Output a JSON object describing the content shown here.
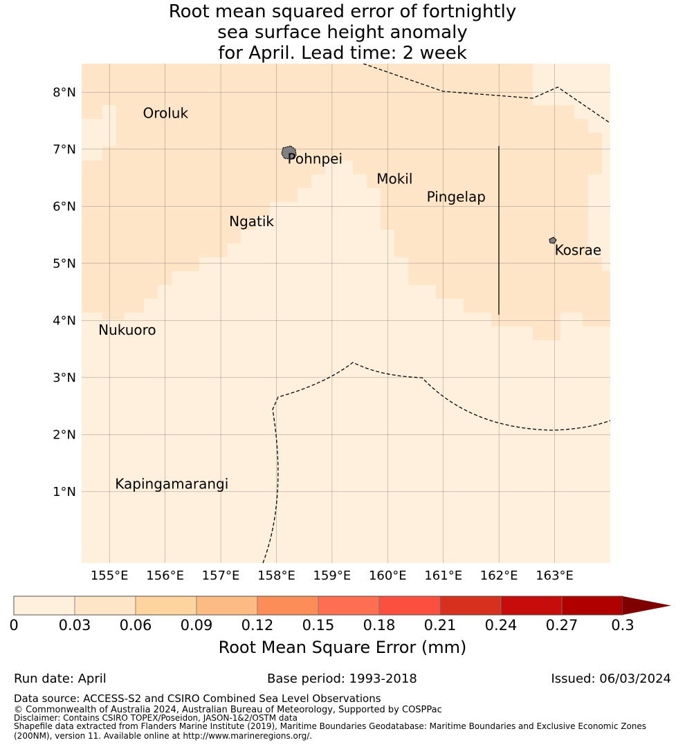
{
  "title": {
    "line1": "Root mean squared error of fortnightly",
    "line2": "sea surface height anomaly",
    "line3": "for April. Lead time: 2 week"
  },
  "map": {
    "lon_range": [
      154.5,
      164.0
    ],
    "lat_range": [
      -0.25,
      8.5
    ],
    "lon_ticks": [
      "155°E",
      "156°E",
      "157°E",
      "158°E",
      "159°E",
      "160°E",
      "161°E",
      "162°E",
      "163°E"
    ],
    "lat_ticks": [
      "1°N",
      "2°N",
      "3°N",
      "4°N",
      "5°N",
      "6°N",
      "7°N",
      "8°N"
    ],
    "gridlines": true,
    "colors": {
      "class1": "#fef0dc",
      "class2": "#fee5c8",
      "island": "#808080",
      "boundary": "#000000"
    },
    "places": [
      {
        "name": "Oroluk",
        "lon": 155.6,
        "lat": 7.55
      },
      {
        "name": "Pohnpei",
        "lon": 158.2,
        "lat": 6.75
      },
      {
        "name": "Mokil",
        "lon": 159.8,
        "lat": 6.4
      },
      {
        "name": "Pingelap",
        "lon": 160.7,
        "lat": 6.08
      },
      {
        "name": "Ngatik",
        "lon": 157.15,
        "lat": 5.65
      },
      {
        "name": "Kosrae",
        "lon": 163.0,
        "lat": 5.15
      },
      {
        "name": "Nukuoro",
        "lon": 154.8,
        "lat": 3.75
      },
      {
        "name": "Kapingamarangi",
        "lon": 155.1,
        "lat": 1.05
      }
    ]
  },
  "colorbar": {
    "bounds": [
      0,
      0.03,
      0.06,
      0.09,
      0.12,
      0.15,
      0.18,
      0.21,
      0.24,
      0.27,
      0.3
    ],
    "tick_labels": [
      "0",
      "0.03",
      "0.06",
      "0.09",
      "0.12",
      "0.15",
      "0.18",
      "0.21",
      "0.24",
      "0.27",
      "0.3"
    ],
    "colors": [
      "#fef0dc",
      "#fee5c8",
      "#fdd49e",
      "#fdbb84",
      "#fc8d59",
      "#fd6f50",
      "#fb4f40",
      "#d8301f",
      "#c70c0c",
      "#b00000"
    ],
    "extend_color": "#7f0000",
    "label": "Root Mean Square Error (mm)"
  },
  "meta": {
    "run_date": "Run date: April",
    "base_period": "Base period: 1993-2018",
    "issued": "Issued: 06/03/2024"
  },
  "footer": {
    "source": "Data source: ACCESS-S2 and CSIRO Combined Sea Level Observations",
    "copyright": "© Commonwealth of Australia 2024, Australian Bureau of Meteorology, Supported by COSPPac",
    "disclaimer": "Disclaimer: Contains CSIRO TOPEX/Poseidon, JASON-1&2/OSTM data",
    "shapefile1": "Shapefile data extracted from Flanders Marine Institute (2019), Maritime Boundaries Geodatabase: Maritime Boundaries and Exclusive Economic Zones",
    "shapefile2": "(200NM), version 11. Available online at http://www.marineregions.org/."
  }
}
